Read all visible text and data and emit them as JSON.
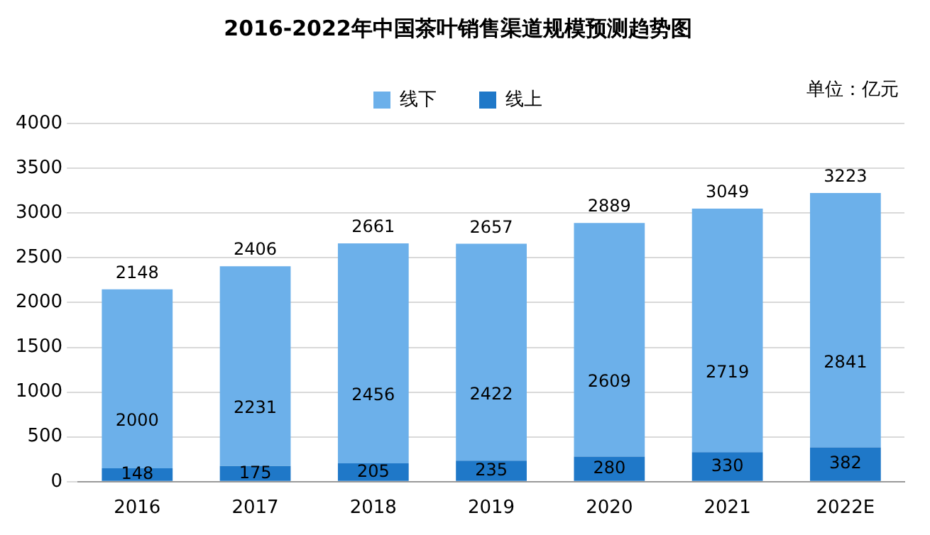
{
  "chart_data": {
    "type": "bar",
    "title": "2016-2022年中国茶叶销售渠道规模预测趋势图",
    "categories": [
      "2016",
      "2017",
      "2018",
      "2019",
      "2020",
      "2021",
      "2022E"
    ],
    "stacked": true,
    "series": [
      {
        "name": "线上",
        "color": "#1f78c8",
        "values": [
          148,
          175,
          205,
          235,
          280,
          330,
          382
        ]
      },
      {
        "name": "线下",
        "color": "#6cb0ea",
        "values": [
          2000,
          2231,
          2456,
          2422,
          2609,
          2719,
          2841
        ]
      }
    ],
    "totals": [
      "2148",
      "2406",
      "2661",
      "2657",
      "2889",
      "3049",
      "3223"
    ],
    "data_labels": true,
    "ylim": [
      0,
      4000
    ],
    "yticks": [
      0,
      500,
      1000,
      1500,
      2000,
      2500,
      3000,
      3500,
      4000
    ],
    "grid": "y",
    "legend": "top",
    "annotations": [
      "单位：亿元"
    ]
  }
}
